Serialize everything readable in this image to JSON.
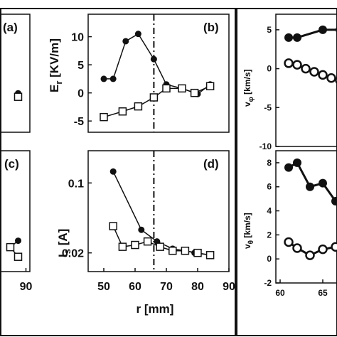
{
  "chart_data": [
    {
      "id": "a",
      "type": "line",
      "panel_label": "(a)",
      "series": [
        {
          "marker": "filled-circle",
          "x": [
            86
          ],
          "y": [
            0.6
          ]
        },
        {
          "marker": "open-square",
          "x": [
            86
          ],
          "y": [
            0.0
          ]
        }
      ],
      "xlim": [
        76,
        92
      ],
      "ylim": [
        -6,
        14
      ],
      "xticks": [],
      "yticks": []
    },
    {
      "id": "b",
      "type": "line",
      "panel_label": "(b)",
      "ylabel": "E_r [kV/m]",
      "series": [
        {
          "marker": "filled-circle",
          "x": [
            50,
            53,
            57,
            61,
            66,
            70,
            75,
            80,
            84
          ],
          "y": [
            2.5,
            2.5,
            9.2,
            10.5,
            6.0,
            1.5,
            0.8,
            -0.2,
            1.5
          ]
        },
        {
          "marker": "open-square",
          "x": [
            50,
            56,
            61,
            66,
            70,
            75,
            79,
            84
          ],
          "y": [
            -4.3,
            -3.3,
            -2.4,
            -0.8,
            0.8,
            0.8,
            0.0,
            1.2
          ]
        }
      ],
      "vline_x": 66,
      "xlim": [
        45,
        90
      ],
      "ylim": [
        -7,
        14
      ],
      "yticks": [
        "10",
        "5",
        "0",
        "-5"
      ],
      "ytick_values": [
        10,
        5,
        0,
        -5
      ]
    },
    {
      "id": "c",
      "type": "line",
      "panel_label": "(c)",
      "series": [
        {
          "marker": "filled-circle",
          "x": [
            82,
            86
          ],
          "y": [
            0.05,
            0.06
          ]
        },
        {
          "marker": "open-square",
          "x": [
            82,
            86
          ],
          "y": [
            0.05,
            0.035
          ]
        }
      ],
      "xlim": [
        76,
        92
      ],
      "ylim": [
        0.012,
        0.2
      ],
      "xticks": [
        "90"
      ],
      "xtick_values": [
        90
      ]
    },
    {
      "id": "d",
      "type": "line",
      "panel_label": "(d)",
      "xlabel": "r [mm]",
      "ylabel": "I_s [A]",
      "yscale": "log",
      "series": [
        {
          "marker": "filled-circle",
          "x": [
            53,
            62,
            67,
            72,
            76,
            79,
            84
          ],
          "y": [
            0.13,
            0.034,
            0.026,
            0.022,
            0.021,
            0.02,
            0.019
          ]
        },
        {
          "marker": "open-square",
          "x": [
            53,
            56,
            60,
            64,
            68,
            72,
            76,
            80,
            84
          ],
          "y": [
            0.037,
            0.023,
            0.024,
            0.026,
            0.023,
            0.021,
            0.021,
            0.02,
            0.019
          ]
        }
      ],
      "vline_x": 66,
      "xlim": [
        45,
        90
      ],
      "ylim": [
        0.013,
        0.21
      ],
      "xticks": [
        "50",
        "60",
        "70",
        "80",
        "90"
      ],
      "xtick_values": [
        50,
        60,
        70,
        80,
        90
      ],
      "yticks": [
        "0.1",
        "0.02"
      ],
      "ytick_values": [
        0.1,
        0.02
      ]
    },
    {
      "id": "e",
      "type": "line",
      "ylabel": "v_φ [km/s]",
      "series": [
        {
          "marker": "filled-circle",
          "x": [
            61,
            62,
            65,
            67
          ],
          "y": [
            4.0,
            4.0,
            5.0,
            5.0
          ]
        },
        {
          "marker": "open-circle",
          "x": [
            61,
            62,
            63,
            64,
            65,
            66,
            67
          ],
          "y": [
            0.7,
            0.5,
            0.0,
            -0.4,
            -0.8,
            -1.2,
            -1.5
          ]
        }
      ],
      "xlim": [
        59.5,
        67
      ],
      "ylim": [
        -10,
        7
      ],
      "yticks": [
        "5",
        "0",
        "-5",
        "-10"
      ],
      "ytick_values": [
        5,
        0,
        -5,
        -10
      ]
    },
    {
      "id": "f",
      "type": "line",
      "ylabel": "v_θ [km/s]",
      "series": [
        {
          "marker": "filled-circle",
          "x": [
            61,
            62,
            63.5,
            65,
            66.5
          ],
          "y": [
            7.6,
            8.0,
            6.0,
            6.3,
            4.8
          ]
        },
        {
          "marker": "open-circle",
          "x": [
            61,
            62,
            63.5,
            65,
            66.5
          ],
          "y": [
            1.4,
            0.9,
            0.3,
            0.8,
            1.0
          ]
        }
      ],
      "xlim": [
        59.5,
        67
      ],
      "ylim": [
        -2,
        9
      ],
      "xticks": [
        "60",
        "65"
      ],
      "xtick_values": [
        60,
        65
      ],
      "yticks": [
        "8",
        "6",
        "4",
        "2",
        "0",
        "-2"
      ],
      "ytick_values": [
        8,
        6,
        4,
        2,
        0,
        -2
      ]
    }
  ]
}
